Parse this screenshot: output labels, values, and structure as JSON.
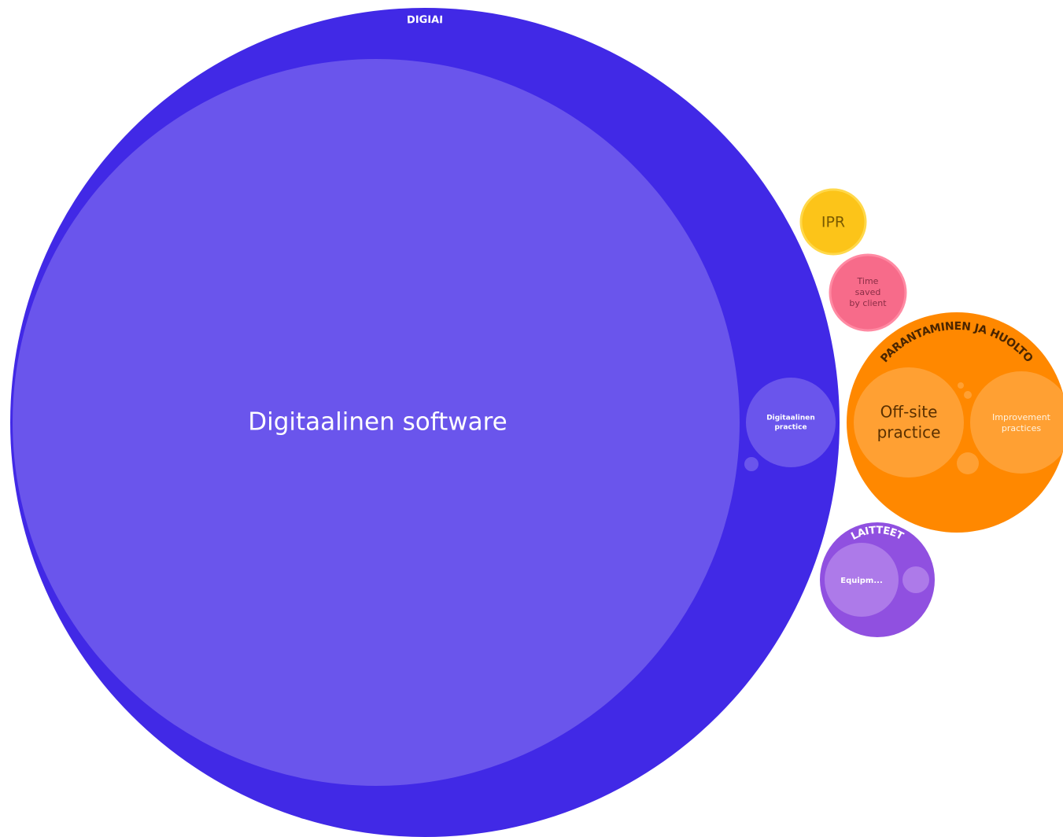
{
  "root": {
    "label": "DIGIAI",
    "children": [
      {
        "label": "Digitaalinen software"
      },
      {
        "label_lines": [
          "Digitaalinen",
          "practice"
        ]
      }
    ]
  },
  "groups": [
    {
      "label": "IPR"
    },
    {
      "label_lines": [
        "Time",
        "saved",
        "by client"
      ]
    },
    {
      "label": "PARANTAMINEN JA HUOLTO",
      "children": [
        {
          "label_lines": [
            "Off-site",
            "practice"
          ]
        },
        {
          "label_lines": [
            "Improvement",
            "practices"
          ]
        }
      ]
    },
    {
      "label": "LAITTEET",
      "children": [
        {
          "label": "Equipm..."
        }
      ]
    }
  ]
}
